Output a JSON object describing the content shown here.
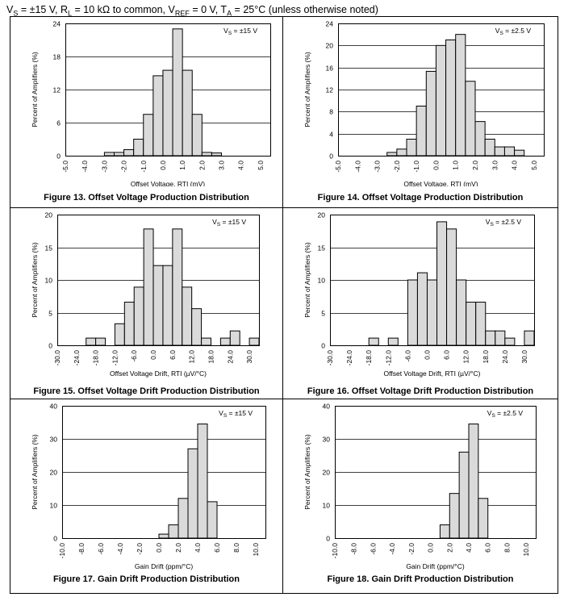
{
  "header": {
    "prefix": "V",
    "s_sub": "S",
    "s_val": " = ±15 V, R",
    "l_sub": "L",
    "l_val": " = 10 kΩ to common, V",
    "ref_sub": "REF",
    "ref_val": " = 0 V, T",
    "a_sub": "A",
    "a_val": " = 25°C (unless otherwise noted)"
  },
  "chart_data": [
    {
      "type": "bar",
      "title": "Figure 13. Offset Voltage Production Distribution",
      "xlabel": "Offset Voltage, RTI (mV)",
      "ylabel": "Percent of Amplifiers (%)",
      "annotation_prefix": "V",
      "annotation_sub": "S",
      "annotation_value": " = ±15 V",
      "xlim": [
        -5.0,
        5.5
      ],
      "ylim": [
        0,
        24
      ],
      "yticks": [
        "0",
        "6",
        "12",
        "18",
        "24"
      ],
      "xticks": [
        "-5.0",
        "-4.0",
        "-3.0",
        "-2.0",
        "-1.0",
        "0.0",
        "1.0",
        "2.0",
        "3.0",
        "4.0",
        "5.0"
      ],
      "xtick_values": [
        -5,
        -4,
        -3,
        -2,
        -1,
        0,
        1,
        2,
        3,
        4,
        5
      ],
      "bin_width": 0.5,
      "bin_starts": [
        -3.0,
        -2.5,
        -2.0,
        -1.5,
        -1.0,
        -0.5,
        0.0,
        0.5,
        1.0,
        1.5,
        2.0,
        2.5
      ],
      "values": [
        0.6,
        0.6,
        1.1,
        3.0,
        7.5,
        14.5,
        15.5,
        23.0,
        15.5,
        7.5,
        0.6,
        0.5
      ],
      "grid": true
    },
    {
      "type": "bar",
      "title": "Figure 14. Offset Voltage Production Distribution",
      "xlabel": "Offset Voltage, RTI (mV)",
      "ylabel": "Percent of Amplifiers (%)",
      "annotation_prefix": "V",
      "annotation_sub": "S",
      "annotation_value": " = ±2.5 V",
      "xlim": [
        -5.0,
        5.5
      ],
      "ylim": [
        0,
        24
      ],
      "yticks": [
        "0",
        "4",
        "8",
        "12",
        "16",
        "20",
        "24"
      ],
      "xticks": [
        "-5.0",
        "-4.0",
        "-3.0",
        "-2.0",
        "-1.0",
        "0.0",
        "1.0",
        "2.0",
        "3.0",
        "4.0",
        "5.0"
      ],
      "xtick_values": [
        -5,
        -4,
        -3,
        -2,
        -1,
        0,
        1,
        2,
        3,
        4,
        5
      ],
      "bin_width": 0.5,
      "bin_starts": [
        -2.5,
        -2.0,
        -1.5,
        -1.0,
        -0.5,
        0.0,
        0.5,
        1.0,
        1.5,
        2.0,
        2.5,
        3.0,
        3.5,
        4.0
      ],
      "values": [
        0.6,
        1.2,
        3.0,
        9.0,
        15.3,
        20.0,
        21.0,
        22.0,
        13.5,
        6.2,
        3.0,
        1.6,
        1.6,
        1.0
      ],
      "gap_after": [
        3.5
      ],
      "grid": true
    },
    {
      "type": "bar",
      "title": "Figure 15. Offset Voltage Drift Production Distribution",
      "xlabel": "Offset Voltage Drift, RTI (µV/°C)",
      "ylabel": "Percent of Amplifiers (%)",
      "annotation_prefix": "V",
      "annotation_sub": "S",
      "annotation_value": " = ±15 V",
      "xlim": [
        -30.0,
        33.0
      ],
      "ylim": [
        0,
        20
      ],
      "yticks": [
        "0",
        "5",
        "10",
        "15",
        "20"
      ],
      "xticks": [
        "-30.0",
        "-24.0",
        "-18.0",
        "-12.0",
        "-6.0",
        "0.0",
        "6.0",
        "12.0",
        "18.0",
        "24.0",
        "30.0"
      ],
      "xtick_values": [
        -30,
        -24,
        -18,
        -12,
        -6,
        0,
        6,
        12,
        18,
        24,
        30
      ],
      "bin_width": 3,
      "bin_starts": [
        -21,
        -18,
        -12,
        -9,
        -6,
        -3,
        0,
        3,
        6,
        9,
        12,
        15,
        21,
        24,
        30
      ],
      "values": [
        1.1,
        1.1,
        3.3,
        6.6,
        8.9,
        17.8,
        12.2,
        12.2,
        17.8,
        8.9,
        5.6,
        1.1,
        1.1,
        2.2,
        1.1
      ],
      "grid": true
    },
    {
      "type": "bar",
      "title": "Figure 16. Offset Voltage Drift Production Distribution",
      "xlabel": "Offset Voltage Drift, RTI (µV/°C)",
      "ylabel": "Percent of Amplifiers (%)",
      "annotation_prefix": "V",
      "annotation_sub": "S",
      "annotation_value": " = ±2.5 V",
      "xlim": [
        -30.0,
        33.0
      ],
      "ylim": [
        0,
        20
      ],
      "yticks": [
        "0",
        "5",
        "10",
        "15",
        "20"
      ],
      "xticks": [
        "-30.0",
        "-24.0",
        "-18.0",
        "-12.0",
        "-6.0",
        "0.0",
        "6.0",
        "12.0",
        "18.0",
        "24.0",
        "30.0"
      ],
      "xtick_values": [
        -30,
        -24,
        -18,
        -12,
        -6,
        0,
        6,
        12,
        18,
        24,
        30
      ],
      "bin_width": 3,
      "bin_starts": [
        -18,
        -12,
        -6,
        -3,
        0,
        3,
        6,
        9,
        12,
        15,
        18,
        21,
        24,
        30
      ],
      "values": [
        1.1,
        1.1,
        10.0,
        11.1,
        10.0,
        18.9,
        17.8,
        10.0,
        6.6,
        6.6,
        2.2,
        2.2,
        1.1,
        2.2
      ],
      "grid": true
    },
    {
      "type": "bar",
      "title": "Figure 17. Gain Drift Production Distribution",
      "xlabel": "Gain Drift (ppm/°C)",
      "ylabel": "Percent of Amplifiers (%)",
      "annotation_prefix": "V",
      "annotation_sub": "S",
      "annotation_value": " = ±15 V",
      "xlim": [
        -10.0,
        11.0
      ],
      "ylim": [
        0,
        40
      ],
      "yticks": [
        "0",
        "10",
        "20",
        "30",
        "40"
      ],
      "xticks": [
        "-10.0",
        "-8.0",
        "-6.0",
        "-4.0",
        "-2.0",
        "0.0",
        "2.0",
        "4.0",
        "6.0",
        "8.0",
        "10.0"
      ],
      "xtick_values": [
        -10,
        -8,
        -6,
        -4,
        -2,
        0,
        2,
        4,
        6,
        8,
        10
      ],
      "bin_width": 1,
      "bin_starts": [
        0,
        1,
        2,
        3,
        4,
        5
      ],
      "values": [
        1.2,
        4.0,
        12.0,
        27.0,
        34.5,
        11.0
      ],
      "grid": true
    },
    {
      "type": "bar",
      "title": "Figure 18. Gain Drift Production Distribution",
      "xlabel": "Gain Drift (ppm/°C)",
      "ylabel": "Percent of Amplifiers (%)",
      "annotation_prefix": "V",
      "annotation_sub": "S",
      "annotation_value": " = ±2.5 V",
      "xlim": [
        -10.0,
        11.0
      ],
      "ylim": [
        0,
        40
      ],
      "yticks": [
        "0",
        "10",
        "20",
        "30",
        "40"
      ],
      "xticks": [
        "-10.0",
        "-8.0",
        "-6.0",
        "-4.0",
        "-2.0",
        "0.0",
        "2.0",
        "4.0",
        "6.0",
        "8.0",
        "10.0"
      ],
      "xtick_values": [
        -10,
        -8,
        -6,
        -4,
        -2,
        0,
        2,
        4,
        6,
        8,
        10
      ],
      "bin_width": 1,
      "bin_starts": [
        1,
        2,
        3,
        4,
        5
      ],
      "values": [
        4.0,
        13.5,
        26.0,
        34.5,
        12.0
      ],
      "grid": true
    }
  ]
}
